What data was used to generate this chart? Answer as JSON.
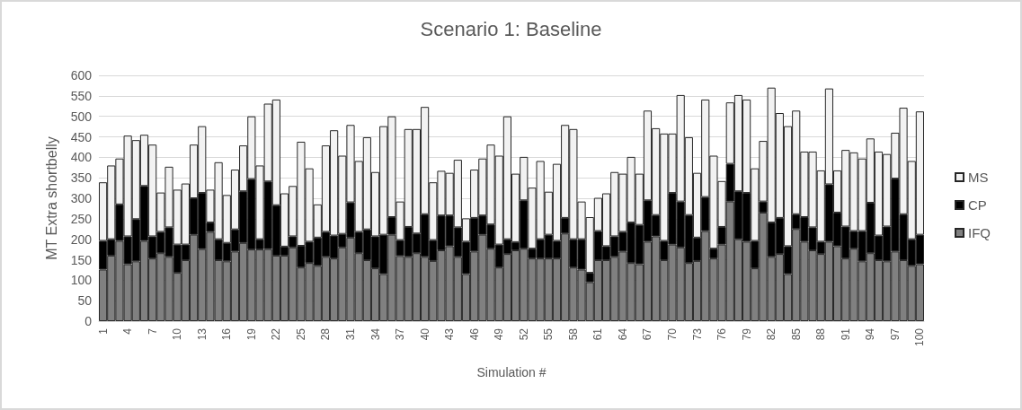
{
  "chart_data": {
    "type": "bar",
    "title": "Scenario 1: Baseline",
    "xlabel": "Simulation #",
    "ylabel": "MT Extra shortbelly",
    "categories": [
      "1",
      null,
      null,
      "4",
      null,
      null,
      "7",
      null,
      null,
      "10",
      null,
      null,
      "13",
      null,
      null,
      "16",
      null,
      null,
      "19",
      null,
      null,
      "22",
      null,
      null,
      "25",
      null,
      null,
      "28",
      null,
      null,
      "31",
      null,
      null,
      "34",
      null,
      null,
      "37",
      null,
      null,
      "40",
      null,
      null,
      "43",
      null,
      null,
      "46",
      null,
      null,
      "49",
      null,
      null,
      "52",
      null,
      null,
      "55",
      null,
      null,
      "58",
      null,
      null,
      "61",
      null,
      null,
      "64",
      null,
      null,
      "67",
      null,
      null,
      "70",
      null,
      null,
      "73",
      null,
      null,
      "76",
      null,
      null,
      "79",
      null,
      null,
      "82",
      null,
      null,
      "85",
      null,
      null,
      "88",
      null,
      null,
      "91",
      null,
      null,
      "94",
      null,
      null,
      "97",
      null,
      null,
      "100"
    ],
    "stacked": true,
    "series": [
      {
        "name": "IFQ",
        "color": "#808080",
        "values": [
          126,
          160,
          196,
          139,
          146,
          196,
          153,
          166,
          157,
          118,
          149,
          211,
          176,
          218,
          149,
          146,
          170,
          191,
          175,
          175,
          176,
          160,
          160,
          180,
          131,
          142,
          135,
          157,
          153,
          180,
          204,
          166,
          149,
          129,
          115,
          211,
          159,
          157,
          166,
          157,
          147,
          173,
          183,
          157,
          115,
          170,
          211,
          177,
          131,
          164,
          173,
          177,
          153,
          153,
          153,
          153,
          214,
          131,
          126,
          95,
          149,
          149,
          157,
          170,
          142,
          139,
          194,
          207,
          149,
          187,
          180,
          142,
          147,
          220,
          153,
          187,
          292,
          200,
          194,
          129,
          265,
          157,
          164,
          115,
          225,
          194,
          173,
          164,
          194,
          183,
          153,
          177,
          146,
          166,
          149,
          146,
          170,
          149,
          135,
          139
        ]
      },
      {
        "name": "CP",
        "color": "#000000",
        "values": [
          70,
          40,
          89,
          68,
          103,
          134,
          54,
          52,
          72,
          69,
          38,
          89,
          137,
          23,
          51,
          45,
          54,
          126,
          172,
          25,
          165,
          123,
          22,
          27,
          53,
          52,
          69,
          61,
          56,
          33,
          86,
          52,
          75,
          78,
          96,
          43,
          39,
          73,
          48,
          104,
          51,
          85,
          75,
          72,
          79,
          82,
          47,
          59,
          56,
          36,
          20,
          118,
          24,
          47,
          58,
          43,
          38,
          69,
          74,
          23,
          71,
          34,
          50,
          48,
          99,
          96,
          101,
          52,
          47,
          126,
          112,
          117,
          57,
          83,
          24,
          43,
          92,
          117,
          119,
          67,
          27,
          84,
          88,
          68,
          36,
          60,
          56,
          30,
          140,
          82,
          78,
          43,
          74,
          123,
          60,
          85,
          178,
          112,
          65,
          72
        ]
      },
      {
        "name": "MS",
        "color": "#f2f2f2",
        "values": [
          143,
          180,
          112,
          246,
          193,
          125,
          224,
          96,
          148,
          134,
          149,
          131,
          163,
          80,
          188,
          117,
          146,
          112,
          153,
          180,
          190,
          258,
          130,
          123,
          254,
          179,
          81,
          211,
          257,
          191,
          189,
          173,
          225,
          157,
          265,
          246,
          94,
          239,
          255,
          262,
          141,
          109,
          104,
          165,
          57,
          118,
          139,
          195,
          217,
          300,
          167,
          106,
          149,
          191,
          105,
          188,
          227,
          269,
          92,
          136,
          81,
          129,
          157,
          142,
          160,
          125,
          219,
          212,
          262,
          145,
          260,
          190,
          158,
          238,
          227,
          112,
          150,
          235,
          228,
          177,
          148,
          329,
          256,
          293,
          253,
          160,
          185,
          174,
          234,
          103,
          187,
          192,
          177,
          157,
          205,
          177,
          112,
          260,
          191,
          301
        ]
      }
    ],
    "ylim": [
      0,
      600
    ],
    "yticks": [
      0,
      50,
      100,
      150,
      200,
      250,
      300,
      350,
      400,
      450,
      500,
      550,
      600
    ],
    "grid": "y",
    "legend": "right"
  }
}
